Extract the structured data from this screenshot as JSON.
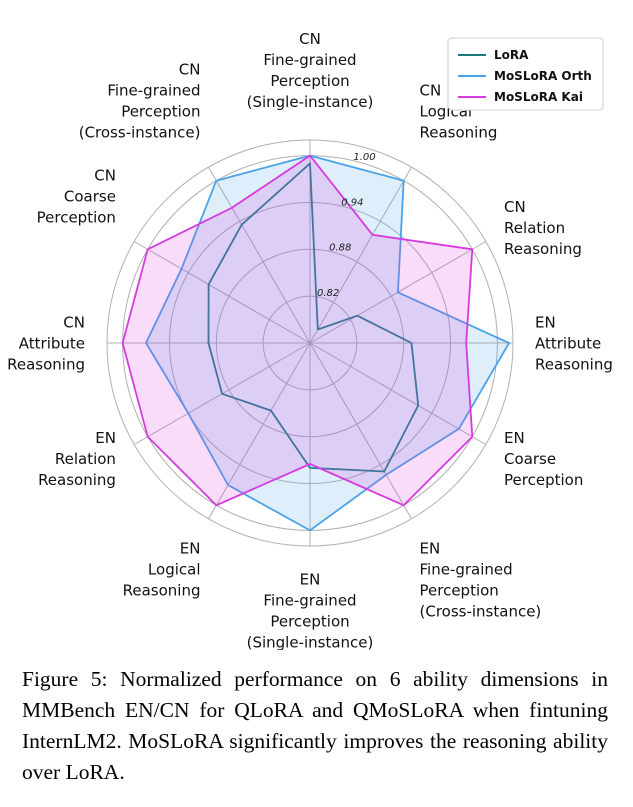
{
  "chart_data": {
    "type": "radar",
    "axes": [
      [
        "CN",
        "Fine-grained",
        "Perception",
        "(Single-instance)"
      ],
      [
        "CN",
        "Logical",
        "Reasoning"
      ],
      [
        "CN",
        "Relation",
        "Reasoning"
      ],
      [
        "EN",
        "Attribute",
        "Reasoning"
      ],
      [
        "EN",
        "Coarse",
        "Perception"
      ],
      [
        "EN",
        "Fine-grained",
        "Perception",
        "(Cross-instance)"
      ],
      [
        "EN",
        "Fine-grained",
        "Perception",
        "(Single-instance)"
      ],
      [
        "EN",
        "Logical",
        "Reasoning"
      ],
      [
        "EN",
        "Relation",
        "Reasoning"
      ],
      [
        "CN",
        "Attribute",
        "Reasoning"
      ],
      [
        "CN",
        "Coarse",
        "Perception"
      ],
      [
        "CN",
        "Fine-grained",
        "Perception",
        "(Cross-instance)"
      ]
    ],
    "tick_values": [
      0.82,
      0.88,
      0.94,
      1.0
    ],
    "tick_labels": [
      "0.82",
      "0.88",
      "0.94",
      "1.00"
    ],
    "range": [
      0.76,
      1.02
    ],
    "grid": true,
    "legend_position": "top-right",
    "series": [
      {
        "name": "LoRA",
        "color": "#1a7a7a",
        "fill_opacity": 0.0,
        "values": [
          0.99,
          0.78,
          0.83,
          0.89,
          0.92,
          0.95,
          0.92,
          0.86,
          0.89,
          0.89,
          0.91,
          0.935
        ]
      },
      {
        "name": "MoSLoRA Orth",
        "color": "#4aa3e8",
        "fill_opacity": 0.18,
        "values": [
          1.0,
          1.0,
          0.89,
          1.015,
          0.98,
          0.955,
          1.0,
          0.97,
          0.94,
          0.97,
          0.95,
          1.0
        ]
      },
      {
        "name": "MoSLoRA Kai",
        "color": "#d63be0",
        "fill_opacity": 0.18,
        "values": [
          1.0,
          0.92,
          1.0,
          0.96,
          1.0,
          1.0,
          0.915,
          1.0,
          1.0,
          1.0,
          1.0,
          0.96
        ]
      }
    ]
  },
  "caption": "Figure 5: Normalized performance on 6 ability dimensions in MMBench EN/CN for QLoRA and QMoSLoRA when fintuning InternLM2. MoSLoRA significantly improves the reasoning ability over LoRA."
}
